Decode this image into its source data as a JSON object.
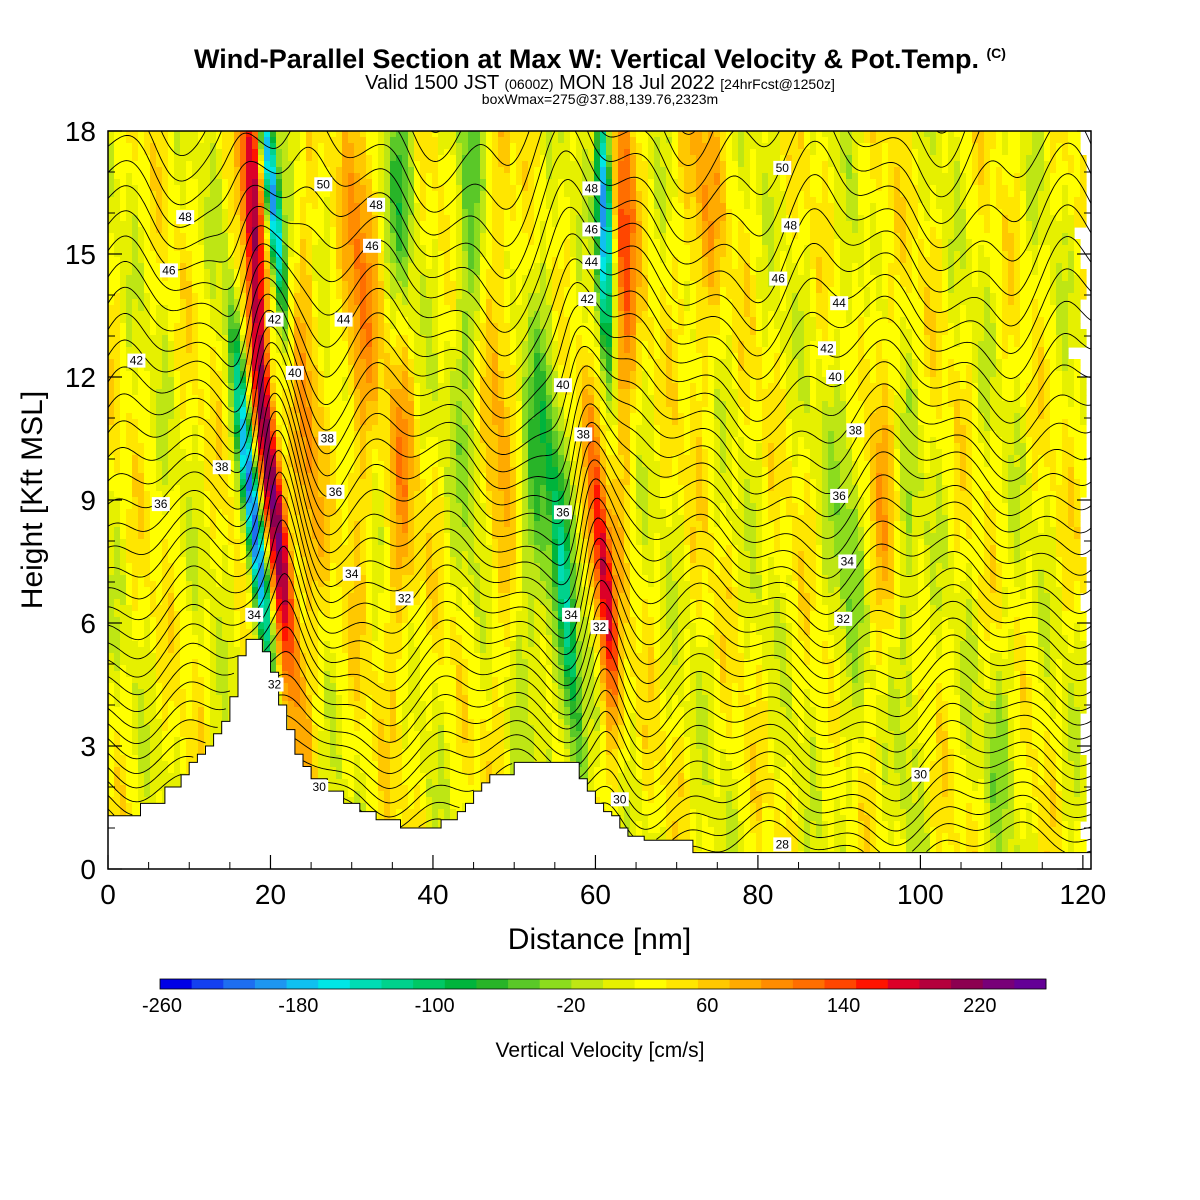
{
  "title": {
    "main": "Wind-Parallel Section at Max W: Vertical Velocity & Pot.Temp.",
    "copyright": "(C)",
    "line2_a": "Valid 1500 JST",
    "line2_b": "(0600Z)",
    "line2_c": "MON 18 Jul 2022",
    "line2_d": "[24hrFcst@1250z]",
    "line3": "boxWmax=275@37.88,139.76,2323m"
  },
  "chart_data": {
    "type": "heatmap",
    "xlabel": "Distance [nm]",
    "ylabel": "Height [Kft MSL]",
    "xlim": [
      0,
      121
    ],
    "ylim": [
      0,
      18
    ],
    "x_ticks": [
      0,
      20,
      40,
      60,
      80,
      100,
      120
    ],
    "y_ticks": [
      0,
      3,
      6,
      9,
      12,
      15,
      18
    ],
    "colorbar": {
      "label": "Vertical Velocity [cm/s]",
      "min": -260,
      "max": 260,
      "step": 20,
      "tick_labels": [
        "-260",
        "-180",
        "-100",
        "-20",
        "60",
        "140",
        "220"
      ],
      "tick_values": [
        -260,
        -180,
        -100,
        -20,
        60,
        140,
        220
      ],
      "colors": [
        "#0000e6",
        "#1440f0",
        "#1e6ef0",
        "#1e96f0",
        "#10c0f0",
        "#00e6e6",
        "#00dcb4",
        "#00d28c",
        "#00c864",
        "#00b43c",
        "#28b428",
        "#5ac828",
        "#8cdc1e",
        "#bee614",
        "#e6f000",
        "#ffff00",
        "#ffe600",
        "#ffc800",
        "#ffaa00",
        "#ff8c00",
        "#ff6e00",
        "#ff4600",
        "#ff1400",
        "#dc0028",
        "#b4003c",
        "#8c0050",
        "#780078",
        "#640096"
      ]
    },
    "pot_temp_contour_labels": [
      "28",
      "30",
      "32",
      "34",
      "36",
      "38",
      "40",
      "42",
      "44",
      "46",
      "48",
      "50"
    ],
    "terrain_kft": [
      [
        0,
        1.3
      ],
      [
        3,
        1.3
      ],
      [
        4,
        1.6
      ],
      [
        6,
        1.6
      ],
      [
        7,
        2.0
      ],
      [
        8,
        2.0
      ],
      [
        9,
        2.3
      ],
      [
        10,
        2.6
      ],
      [
        11,
        2.8
      ],
      [
        12,
        3.0
      ],
      [
        13,
        3.3
      ],
      [
        14,
        3.6
      ],
      [
        15,
        4.2
      ],
      [
        16,
        5.2
      ],
      [
        17,
        5.6
      ],
      [
        19,
        5.3
      ],
      [
        20,
        4.8
      ],
      [
        21,
        4.0
      ],
      [
        22,
        3.4
      ],
      [
        23,
        2.8
      ],
      [
        24,
        2.5
      ],
      [
        25,
        2.2
      ],
      [
        27,
        1.9
      ],
      [
        29,
        1.6
      ],
      [
        31,
        1.4
      ],
      [
        33,
        1.2
      ],
      [
        35,
        1.2
      ],
      [
        36,
        1.0
      ],
      [
        40,
        1.0
      ],
      [
        41,
        1.2
      ],
      [
        43,
        1.4
      ],
      [
        44,
        1.6
      ],
      [
        45,
        1.9
      ],
      [
        46,
        2.1
      ],
      [
        47,
        2.3
      ],
      [
        49,
        2.3
      ],
      [
        50,
        2.6
      ],
      [
        55,
        2.6
      ],
      [
        57,
        2.6
      ],
      [
        58,
        2.2
      ],
      [
        59,
        1.9
      ],
      [
        60,
        1.6
      ],
      [
        61,
        1.4
      ],
      [
        62,
        1.3
      ],
      [
        63,
        1.0
      ],
      [
        64,
        0.8
      ],
      [
        66,
        0.7
      ],
      [
        71,
        0.7
      ],
      [
        72,
        0.4
      ],
      [
        121,
        0.4
      ]
    ]
  }
}
